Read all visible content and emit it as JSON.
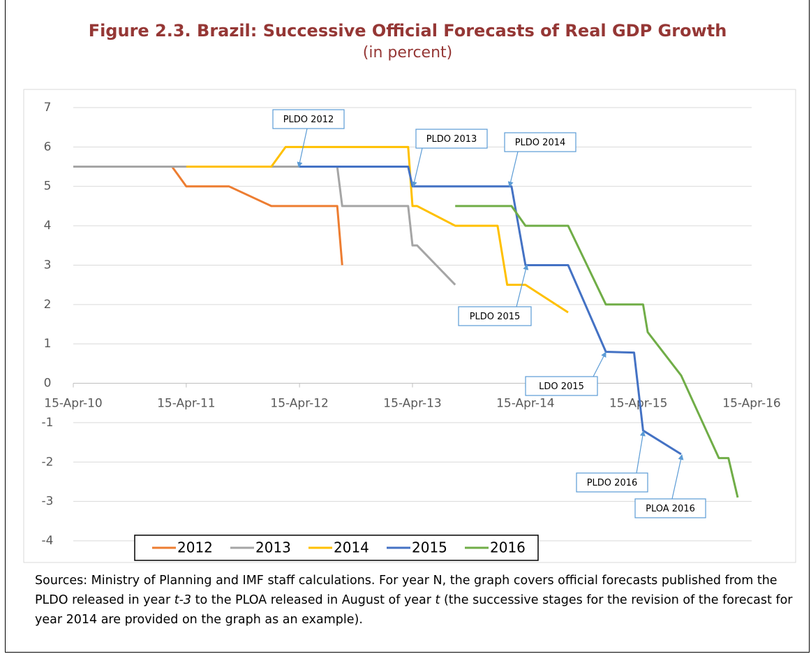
{
  "chart_data": {
    "type": "line",
    "title": "Figure 2.3. Brazil: Successive Official Forecasts of Real GDP Growth",
    "subtitle": "(in percent)",
    "xlim": [
      "2010-04-15",
      "2016-04-15"
    ],
    "xticks": [
      {
        "value": "2010-04-15",
        "label": "15-Apr-10"
      },
      {
        "value": "2011-04-15",
        "label": "15-Apr-11"
      },
      {
        "value": "2012-04-15",
        "label": "15-Apr-12"
      },
      {
        "value": "2013-04-15",
        "label": "15-Apr-13"
      },
      {
        "value": "2014-04-15",
        "label": "15-Apr-14"
      },
      {
        "value": "2015-04-15",
        "label": "15-Apr-15"
      },
      {
        "value": "2016-04-15",
        "label": "15-Apr-16"
      }
    ],
    "ylim": [
      -4,
      7
    ],
    "yticks": [
      -4,
      -3,
      -2,
      -1,
      0,
      1,
      2,
      3,
      4,
      5,
      6,
      7
    ],
    "grid": true,
    "legend": "bottom",
    "series": [
      {
        "name": "2012",
        "color": "#ed7d31",
        "x": [
          "2010-04-15",
          "2011-02-28",
          "2011-04-15",
          "2011-08-31",
          "2012-01-15",
          "2012-08-15",
          "2012-08-31"
        ],
        "values": [
          5.5,
          5.5,
          5.0,
          5.0,
          4.5,
          4.5,
          3.0
        ]
      },
      {
        "name": "2013",
        "color": "#a5a5a5",
        "x": [
          "2010-04-15",
          "2012-08-15",
          "2012-08-31",
          "2013-04-01",
          "2013-04-15",
          "2013-04-30",
          "2013-08-31"
        ],
        "values": [
          5.5,
          5.5,
          4.5,
          4.5,
          3.5,
          3.5,
          2.5
        ]
      },
      {
        "name": "2014",
        "color": "#ffc000",
        "x": [
          "2011-04-15",
          "2012-01-15",
          "2012-03-01",
          "2013-04-01",
          "2013-04-15",
          "2013-04-30",
          "2013-08-31",
          "2014-01-15",
          "2014-02-15",
          "2014-04-15",
          "2014-08-31"
        ],
        "values": [
          5.5,
          5.5,
          6.0,
          6.0,
          4.5,
          4.5,
          4.0,
          4.0,
          2.5,
          2.5,
          1.8
        ]
      },
      {
        "name": "2015",
        "color": "#4472c4",
        "x": [
          "2012-04-15",
          "2013-04-01",
          "2013-04-15",
          "2014-03-01",
          "2014-04-15",
          "2014-08-31",
          "2014-12-31",
          "2015-04-01",
          "2015-04-30",
          "2015-08-31"
        ],
        "values": [
          5.5,
          5.5,
          5.0,
          5.0,
          3.0,
          3.0,
          0.8,
          0.78,
          -1.2,
          -1.8
        ]
      },
      {
        "name": "2016",
        "color": "#70ad47",
        "x": [
          "2013-08-31",
          "2014-03-01",
          "2014-04-15",
          "2014-08-31",
          "2014-12-31",
          "2015-04-30",
          "2015-05-15",
          "2015-08-31",
          "2015-12-31",
          "2016-01-31",
          "2016-03-01"
        ],
        "values": [
          4.5,
          4.5,
          4.0,
          4.0,
          2.0,
          2.0,
          1.3,
          0.2,
          -1.9,
          -1.9,
          -2.9
        ]
      }
    ],
    "annotations": [
      "PLDO 2012",
      "PLDO 2013",
      "PLDO 2014",
      "PLDO 2015",
      "LDO 2015",
      "PLDO 2016",
      "PLOA 2016"
    ]
  },
  "note": [
    "Sources: Ministry of Planning and IMF staff calculations. For year N, the graph covers official forecasts published from the PLDO released in year ",
    "t-3",
    " to the PLOA released in August of year ",
    "t",
    " (the successive stages for the revision of the forecast for year 2014 are provided on the graph as an example)."
  ]
}
